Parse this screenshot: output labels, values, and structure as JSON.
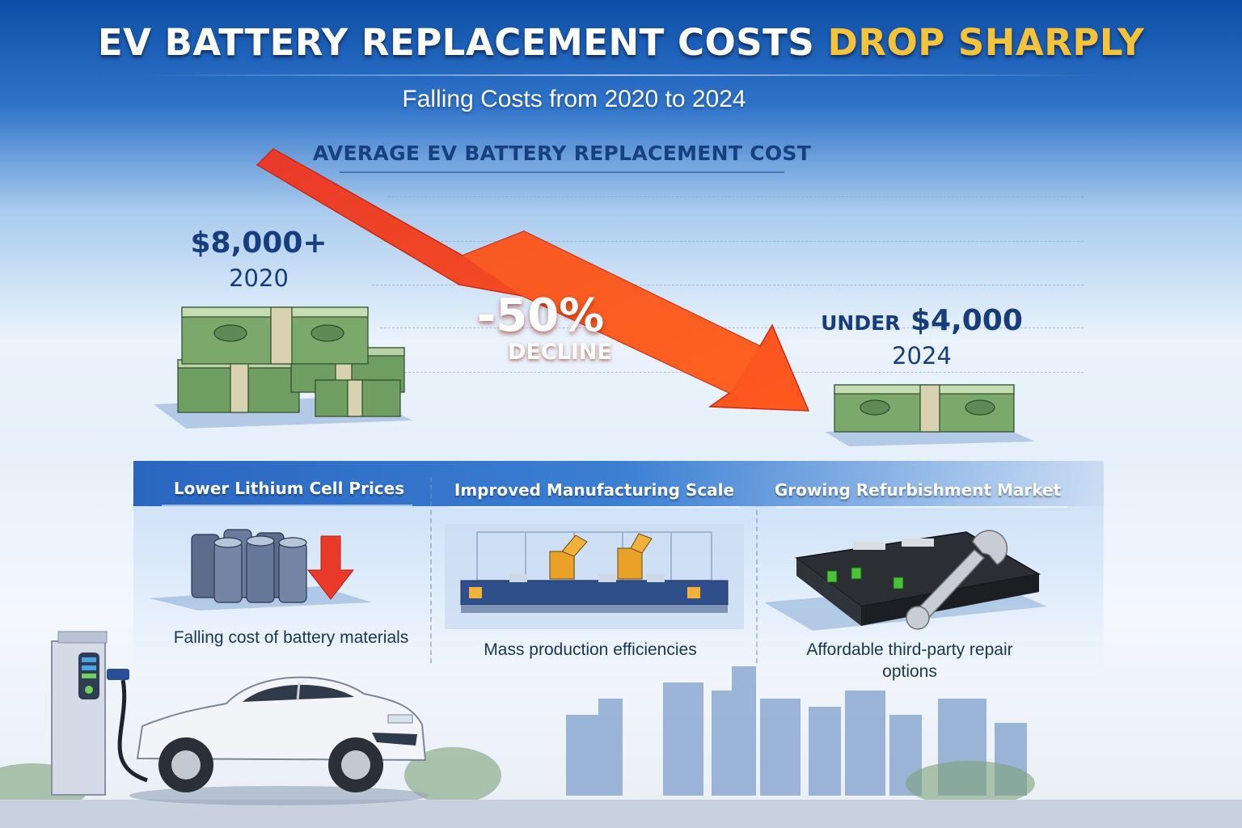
{
  "header": {
    "title_main": "EV BATTERY REPLACEMENT COSTS",
    "title_accent": "DROP SHARPLY",
    "subtitle": "Falling Costs from 2020 to 2024"
  },
  "chart": {
    "heading": "AVERAGE EV BATTERY REPLACEMENT COST",
    "start": {
      "amount": "$8,000+",
      "year": "2020"
    },
    "end": {
      "prefix": "UNDER",
      "amount": "$4,000",
      "year": "2024"
    },
    "decline": {
      "percent": "-50%",
      "label": "DECLINE"
    }
  },
  "factors": [
    {
      "title": "Lower Lithium Cell Prices",
      "description": "Falling cost of battery materials",
      "icon": "battery-cells-down-arrow-icon"
    },
    {
      "title": "Improved Manufacturing Scale",
      "description": "Mass production efficiencies",
      "icon": "robotic-factory-line-icon"
    },
    {
      "title": "Growing Refurbishment Market",
      "description": "Affordable third-party repair options",
      "icon": "battery-pack-wrench-icon"
    }
  ],
  "colors": {
    "header_blue": "#0d4fa8",
    "accent_gold": "#f5c33a",
    "arrow_red": "#f0452a",
    "text_navy": "#173d7c",
    "cash_green": "#6f9e62"
  },
  "illustrations": [
    "cash-stack-large-icon",
    "cash-stack-small-icon",
    "ev-charger-icon",
    "electric-car-icon",
    "city-skyline"
  ]
}
